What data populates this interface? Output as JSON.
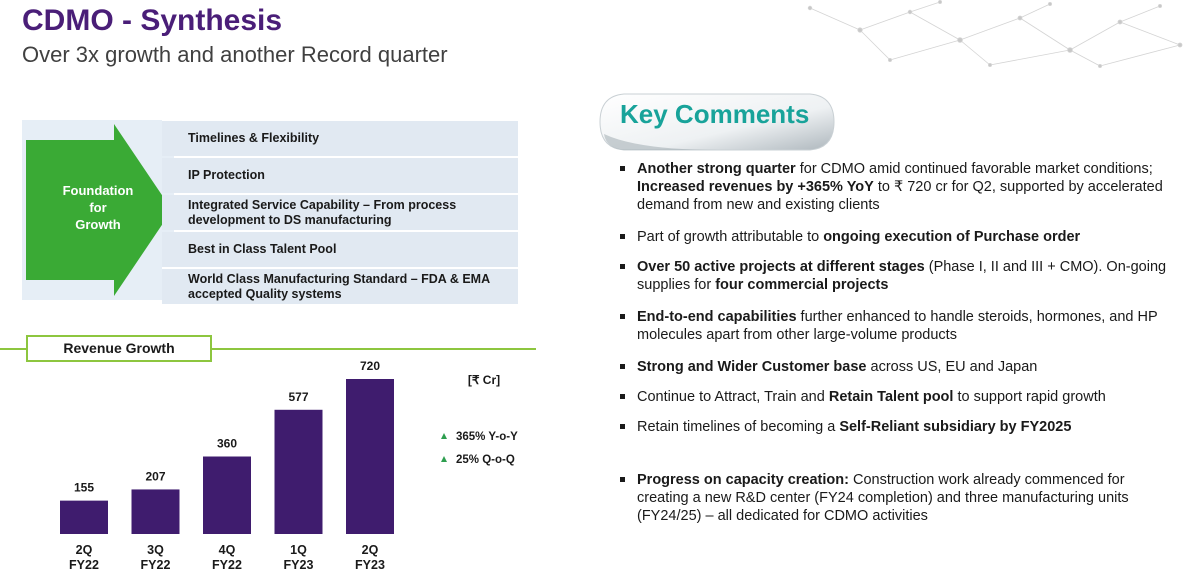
{
  "header": {
    "title": "CDMO - Synthesis",
    "subtitle": "Over 3x growth and another Record quarter"
  },
  "foundation": {
    "label_lines": [
      "Foundation",
      "for",
      "Growth"
    ],
    "rows": [
      "Timelines & Flexibility",
      "IP Protection",
      "Integrated Service Capability – From process development to DS manufacturing",
      "Best in Class Talent Pool",
      "World Class Manufacturing Standard – FDA & EMA accepted Quality systems"
    ]
  },
  "revenue": {
    "badge": "Revenue Growth",
    "unit": "[₹ Cr]",
    "growth": [
      {
        "icon": "triangle-up-icon",
        "text": "365% Y-o-Y"
      },
      {
        "icon": "triangle-up-icon",
        "text": "25% Q-o-Q"
      }
    ]
  },
  "chart_data": {
    "type": "bar",
    "categories": [
      [
        "2Q",
        "FY22"
      ],
      [
        "3Q",
        "FY22"
      ],
      [
        "4Q",
        "FY22"
      ],
      [
        "1Q",
        "FY23"
      ],
      [
        "2Q",
        "FY23"
      ]
    ],
    "values": [
      155,
      207,
      360,
      577,
      720
    ],
    "title": "Revenue Growth",
    "ylabel": "[₹ Cr]",
    "ylim": [
      0,
      720
    ],
    "bar_color": "#3f1c6e",
    "grid": false
  },
  "comments": {
    "title": "Key Comments",
    "items": [
      [
        {
          "t": "Another strong quarter",
          "b": true
        },
        {
          "t": " for  CDMO amid continued favorable market conditions; "
        },
        {
          "t": "Increased revenues by +365% YoY",
          "b": true
        },
        {
          "t": " to ₹ 720 cr for Q2, supported by accelerated demand from new and existing clients"
        }
      ],
      [
        {
          "t": "Part of growth attributable to "
        },
        {
          "t": "ongoing execution of Purchase order",
          "b": true
        }
      ],
      [
        {
          "t": "Over 50 active projects at different stages",
          "b": true
        },
        {
          "t": " (Phase I, II and III + CMO). On-going supplies for "
        },
        {
          "t": "four commercial projects",
          "b": true
        }
      ],
      [
        {
          "t": "End-to-end capabilities",
          "b": true
        },
        {
          "t": " further enhanced to handle steroids, hormones, and HP molecules apart from other large-volume products"
        }
      ],
      [
        {
          "t": "Strong and Wider Customer base",
          "b": true
        },
        {
          "t": " across US, EU and Japan"
        }
      ],
      [
        {
          "t": "Continue to Attract, Train and "
        },
        {
          "t": "Retain Talent pool",
          "b": true
        },
        {
          "t": " to support rapid growth"
        }
      ],
      [
        {
          "t": "Retain timelines of becoming a "
        },
        {
          "t": "Self-Reliant subsidiary by FY2025",
          "b": true
        }
      ],
      [
        {
          "t": "Progress on capacity creation:",
          "b": true
        },
        {
          "t": " Construction work already commenced for creating a new R&D center (FY24 completion) and three manufacturing units (FY24/25) – all dedicated for CDMO activities"
        }
      ]
    ]
  },
  "colors": {
    "title": "#4a1e78",
    "green": "#3aaa35",
    "accent_teal": "#18a39a",
    "row_bg": "#e1e9f2",
    "growth_arrow": "#2e9e4f"
  }
}
